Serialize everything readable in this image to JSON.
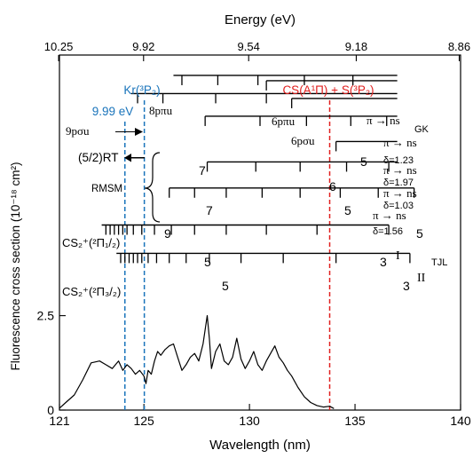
{
  "chart_data": {
    "type": "line",
    "title": "",
    "xlabel": "Wavelength (nm)",
    "ylabel": "Fluorescence cross section (10⁻¹⁸ cm²)",
    "x2label": "Energy (eV)",
    "xlim": [
      121,
      140
    ],
    "ylim": [
      0,
      9.4
    ],
    "xticks": [
      "121",
      "125",
      "130",
      "135",
      "140"
    ],
    "yticks": [
      "0",
      "2.5"
    ],
    "x2ticks": [
      "10.25",
      "9.92",
      "9.54",
      "9.18",
      "8.86"
    ],
    "grid": false,
    "series": [
      {
        "name": "",
        "color": "#000000",
        "x": [
          121.0,
          121.3,
          121.7,
          122.1,
          122.5,
          122.9,
          123.2,
          123.5,
          123.8,
          124.0,
          124.2,
          124.4,
          124.6,
          124.8,
          125.0,
          125.1,
          125.2,
          125.35,
          125.5,
          125.65,
          125.8,
          126.0,
          126.2,
          126.4,
          126.6,
          126.8,
          127.0,
          127.2,
          127.4,
          127.6,
          127.8,
          128.0,
          128.1,
          128.2,
          128.4,
          128.6,
          128.8,
          129.0,
          129.2,
          129.4,
          129.6,
          129.8,
          130.0,
          130.2,
          130.4,
          130.6,
          130.8,
          131.0,
          131.2,
          131.4,
          131.6,
          131.8,
          132.0,
          132.3,
          132.6,
          132.9,
          133.2,
          133.5,
          133.8,
          134.0
        ],
        "y": [
          0.05,
          0.2,
          0.4,
          0.8,
          1.25,
          1.3,
          1.2,
          1.1,
          1.3,
          1.05,
          1.2,
          1.1,
          0.95,
          1.05,
          0.9,
          0.7,
          1.05,
          0.95,
          1.3,
          1.55,
          1.45,
          1.6,
          1.7,
          1.75,
          1.4,
          1.05,
          1.2,
          1.4,
          1.5,
          1.3,
          1.75,
          2.5,
          1.9,
          1.1,
          1.55,
          1.75,
          1.3,
          1.2,
          1.4,
          1.9,
          1.35,
          1.1,
          1.3,
          1.55,
          1.2,
          1.05,
          1.3,
          1.5,
          1.7,
          1.4,
          1.25,
          1.05,
          0.9,
          0.6,
          0.35,
          0.2,
          0.12,
          0.08,
          0.1,
          0.04
        ]
      }
    ],
    "reference_lines": [
      {
        "label": "Kr(³P₂)",
        "x": 125.02,
        "color": "#1a74bb"
      },
      {
        "label": "9.99 eV",
        "x": 124.1,
        "color": "#1a74bb"
      },
      {
        "label": "CS(A¹Π) + S(³P₂)",
        "x": 133.8,
        "color": "#e0201f"
      }
    ],
    "progressions": [
      {
        "group": "GK",
        "label": "8pπu",
        "y": 8.86,
        "x_start": 126.4,
        "x_end": 137.0,
        "tick_x": [
          126.8,
          128.5,
          130.4,
          132.6,
          134.9
        ],
        "tick_labels": []
      },
      {
        "group": "GK",
        "label": "6pπu",
        "y": 8.72,
        "x_start": 130.8,
        "x_end": 137.0,
        "tick_x": [
          130.8
        ],
        "tick_labels": []
      },
      {
        "group": "GK",
        "label": "9pσu",
        "y": 8.38,
        "x_start": 124.4,
        "x_end": 137.0,
        "tick_x": [
          124.7,
          125.9,
          128.4,
          130.8
        ],
        "tick_labels": []
      },
      {
        "group": "GK",
        "label": "6pσu",
        "y": 8.25,
        "x_start": 132.0,
        "x_end": 137.0,
        "tick_x": [
          132.0
        ],
        "tick_labels": []
      },
      {
        "group": "RMSM",
        "label": "δ=1.23",
        "y": 7.78,
        "x_start": 127.9,
        "x_end": 137.0,
        "tick_x": [
          127.9,
          130.5,
          132.7,
          134.8,
          136.5
        ],
        "tick_labels": [
          "7",
          "5"
        ]
      },
      {
        "group": "RMSM",
        "label": "δ=1.97",
        "y": 7.11,
        "x_start": 134.1,
        "x_end": 137.0,
        "tick_x": [
          134.1
        ],
        "tick_labels": [
          "6"
        ]
      },
      {
        "group": "RMSM",
        "label": "δ=1.03",
        "y": 6.57,
        "x_start": 128.0,
        "x_end": 137.0,
        "tick_x": [
          128.0,
          130.3,
          132.4,
          134.6,
          136.6
        ],
        "tick_labels": [
          "7",
          "5"
        ]
      },
      {
        "group": "RMSM",
        "label": "δ=1.56",
        "y": 5.88,
        "x_start": 126.2,
        "x_end": 137.8,
        "tick_x": [
          126.2,
          127.4,
          128.9,
          130.6,
          132.4,
          134.3,
          136.1,
          137.8
        ],
        "tick_labels": [
          "9",
          "5"
        ]
      },
      {
        "group": "TJL",
        "label": "CS₂⁺(²Π₁/₂)",
        "y": 4.9,
        "x_start": 123.0,
        "x_end": 136.6,
        "tick_x": [
          123.2,
          123.4,
          123.6,
          123.8,
          124.0,
          124.2,
          124.5,
          124.9,
          125.5,
          126.3,
          127.4,
          128.9,
          130.8,
          133.2,
          136.6
        ],
        "tick_labels": [
          "5",
          "3",
          "I"
        ]
      },
      {
        "group": "TJL",
        "label": "CS₂⁺(²Π₃/₂)",
        "y": 4.15,
        "x_start": 123.7,
        "x_end": 137.6,
        "tick_x": [
          123.9,
          124.1,
          124.3,
          124.5,
          124.7,
          124.9,
          125.2,
          125.6,
          126.2,
          127.0,
          128.1,
          129.6,
          131.6,
          134.1,
          137.6
        ],
        "tick_labels": [
          "5",
          "3",
          "II"
        ]
      }
    ]
  },
  "annotations": {
    "kr_label": "Kr(³P₂)",
    "ev_label": "9.99 eV",
    "cs_label": "CS(A¹Π) + S(³P₂)",
    "p8pi": "8pπu",
    "p6pi": "6pπu",
    "p9sigma": "9pσu",
    "p6sigma": "6pσu",
    "pi_ns": "π → ns",
    "gk": "GK",
    "rt": "(5/2)RT",
    "rmsm": "RMSM",
    "tjl": "TJL",
    "delta_123": "δ=1.23",
    "delta_197": "δ=1.97",
    "delta_103": "δ=1.03",
    "delta_156": "δ=1.56",
    "cs2_half": "CS₂⁺(²Π₁/₂)",
    "cs2_threehalf": "CS₂⁺(²Π₃/₂)",
    "num_7a": "7",
    "num_5a": "5",
    "num_6": "6",
    "num_7b": "7",
    "num_5b": "5",
    "num_9": "9",
    "num_5c": "5",
    "num_5d": "5",
    "num_3a": "3",
    "num_5e": "5",
    "num_3b": "3",
    "roman_1": "I",
    "roman_2": "II"
  },
  "colors": {
    "axis": "#000000",
    "kr": "#1a74bb",
    "cs": "#e0201f"
  }
}
